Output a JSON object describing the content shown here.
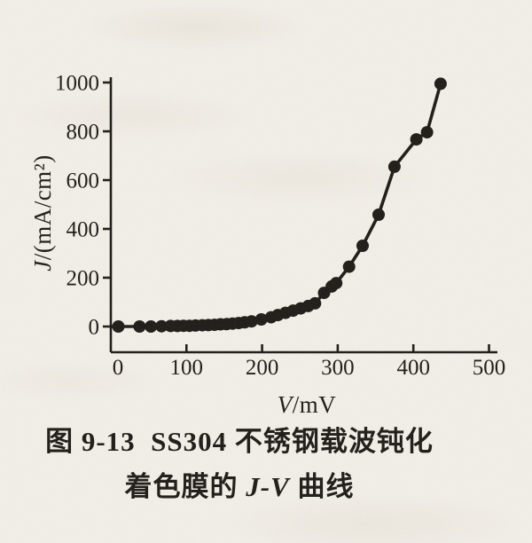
{
  "page": {
    "paper_color": "#f2efe9",
    "ink_color": "#1c1916"
  },
  "chart_data": {
    "type": "line",
    "title": "",
    "xlabel": "V/mV",
    "ylabel": "J/(mA/cm²)",
    "xlim": [
      0,
      500
    ],
    "ylim": [
      0,
      1000
    ],
    "x_ticks": [
      0,
      100,
      200,
      300,
      400,
      500
    ],
    "y_ticks": [
      0,
      200,
      400,
      600,
      800,
      1000
    ],
    "grid": false,
    "legend": "none",
    "marker": "filled-circle",
    "series": [
      {
        "name": "SS304 carrier-passivated colored film J-V curve",
        "x": [
          10,
          38,
          53,
          67,
          79,
          88,
          96,
          104,
          112,
          121,
          129,
          137,
          145,
          153,
          161,
          169,
          177,
          186,
          199,
          212,
          221,
          231,
          241,
          251,
          261,
          270,
          282,
          292,
          298,
          315,
          333,
          354,
          375,
          404,
          418,
          436
        ],
        "y": [
          0,
          0,
          0,
          1,
          2,
          2,
          3,
          3,
          4,
          5,
          6,
          7,
          9,
          10,
          12,
          14,
          17,
          21,
          29,
          38,
          47,
          56,
          65,
          74,
          84,
          95,
          138,
          164,
          178,
          245,
          331,
          458,
          655,
          767,
          796,
          995
        ]
      }
    ]
  },
  "caption": {
    "line1": "图 9-13  SS304 不锈钢载波钝化",
    "line2_prefix": "着色膜的 ",
    "line2_italic": "J-V",
    "line2_suffix": " 曲线"
  }
}
